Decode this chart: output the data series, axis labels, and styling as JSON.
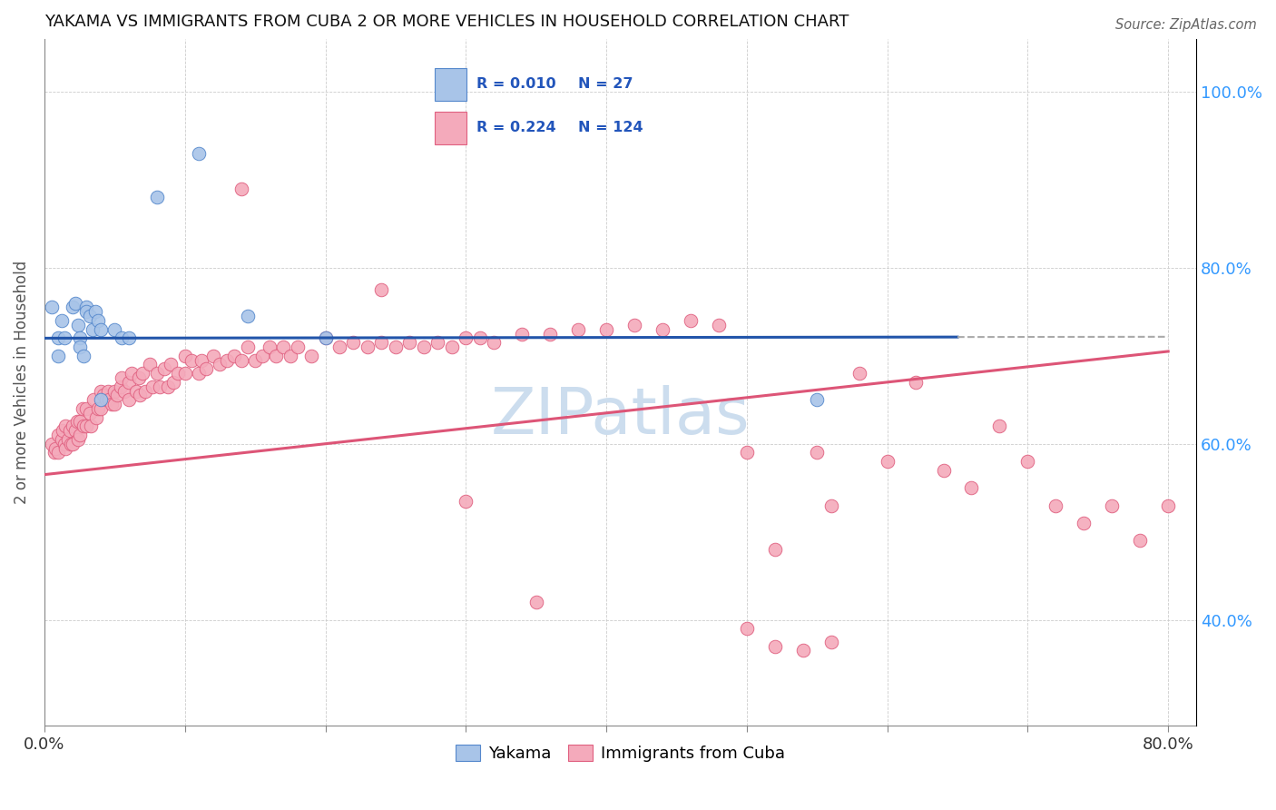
{
  "title": "YAKAMA VS IMMIGRANTS FROM CUBA 2 OR MORE VEHICLES IN HOUSEHOLD CORRELATION CHART",
  "source": "Source: ZipAtlas.com",
  "ylabel": "2 or more Vehicles in Household",
  "legend_R_blue": "0.010",
  "legend_N_blue": "27",
  "legend_R_pink": "0.224",
  "legend_N_pink": "124",
  "blue_color": "#A8C4E8",
  "blue_edge_color": "#5588CC",
  "pink_color": "#F4AABB",
  "pink_edge_color": "#E06080",
  "blue_line_color": "#2255AA",
  "pink_line_color": "#DD5577",
  "dash_color": "#AAAAAA",
  "watermark_color": "#CCDDEE",
  "blue_line_y_intercept": 0.72,
  "blue_line_slope": 0.002,
  "blue_line_solid_end": 0.65,
  "pink_line_y_intercept": 0.565,
  "pink_line_slope": 0.175,
  "x_min": 0.0,
  "x_max": 0.82,
  "y_min": 0.28,
  "y_max": 1.06,
  "y_ticks": [
    0.4,
    0.6,
    0.8,
    1.0
  ],
  "y_tick_labels": [
    "40.0%",
    "60.0%",
    "80.0%",
    "100.0%"
  ],
  "x_ticks": [
    0.0,
    0.1,
    0.2,
    0.3,
    0.4,
    0.5,
    0.6,
    0.7,
    0.8
  ],
  "x_tick_labels_show": [
    "0.0%",
    "80.0%"
  ],
  "yakama_x": [
    0.005,
    0.01,
    0.01,
    0.012,
    0.014,
    0.02,
    0.022,
    0.024,
    0.025,
    0.025,
    0.028,
    0.03,
    0.03,
    0.032,
    0.034,
    0.036,
    0.038,
    0.04,
    0.04,
    0.05,
    0.055,
    0.06,
    0.08,
    0.11,
    0.145,
    0.2,
    0.55
  ],
  "yakama_y": [
    0.755,
    0.72,
    0.7,
    0.74,
    0.72,
    0.755,
    0.76,
    0.735,
    0.72,
    0.71,
    0.7,
    0.755,
    0.75,
    0.745,
    0.73,
    0.75,
    0.74,
    0.73,
    0.65,
    0.73,
    0.72,
    0.72,
    0.88,
    0.93,
    0.745,
    0.72,
    0.65
  ],
  "cuba_x": [
    0.005,
    0.007,
    0.008,
    0.01,
    0.01,
    0.012,
    0.013,
    0.014,
    0.015,
    0.015,
    0.017,
    0.018,
    0.019,
    0.02,
    0.02,
    0.022,
    0.023,
    0.024,
    0.025,
    0.025,
    0.027,
    0.028,
    0.03,
    0.03,
    0.032,
    0.033,
    0.035,
    0.037,
    0.038,
    0.04,
    0.04,
    0.042,
    0.044,
    0.045,
    0.046,
    0.048,
    0.05,
    0.05,
    0.052,
    0.054,
    0.055,
    0.057,
    0.06,
    0.06,
    0.062,
    0.065,
    0.067,
    0.068,
    0.07,
    0.072,
    0.075,
    0.077,
    0.08,
    0.082,
    0.085,
    0.088,
    0.09,
    0.092,
    0.095,
    0.1,
    0.1,
    0.105,
    0.11,
    0.112,
    0.115,
    0.12,
    0.125,
    0.13,
    0.135,
    0.14,
    0.145,
    0.15,
    0.155,
    0.16,
    0.165,
    0.17,
    0.175,
    0.18,
    0.19,
    0.2,
    0.21,
    0.22,
    0.23,
    0.24,
    0.25,
    0.26,
    0.27,
    0.28,
    0.29,
    0.3,
    0.31,
    0.32,
    0.34,
    0.36,
    0.38,
    0.4,
    0.42,
    0.44,
    0.46,
    0.48,
    0.5,
    0.52,
    0.55,
    0.56,
    0.58,
    0.6,
    0.62,
    0.64,
    0.66,
    0.68,
    0.7,
    0.72,
    0.74,
    0.76,
    0.78,
    0.8,
    0.5,
    0.52,
    0.54,
    0.56,
    0.24,
    0.14,
    0.3,
    0.35
  ],
  "cuba_y": [
    0.6,
    0.59,
    0.595,
    0.61,
    0.59,
    0.605,
    0.615,
    0.6,
    0.595,
    0.62,
    0.605,
    0.615,
    0.6,
    0.62,
    0.6,
    0.615,
    0.625,
    0.605,
    0.625,
    0.61,
    0.64,
    0.62,
    0.64,
    0.62,
    0.635,
    0.62,
    0.65,
    0.63,
    0.64,
    0.66,
    0.64,
    0.655,
    0.65,
    0.66,
    0.65,
    0.645,
    0.66,
    0.645,
    0.655,
    0.665,
    0.675,
    0.66,
    0.67,
    0.65,
    0.68,
    0.66,
    0.675,
    0.655,
    0.68,
    0.66,
    0.69,
    0.665,
    0.68,
    0.665,
    0.685,
    0.665,
    0.69,
    0.67,
    0.68,
    0.7,
    0.68,
    0.695,
    0.68,
    0.695,
    0.685,
    0.7,
    0.69,
    0.695,
    0.7,
    0.695,
    0.71,
    0.695,
    0.7,
    0.71,
    0.7,
    0.71,
    0.7,
    0.71,
    0.7,
    0.72,
    0.71,
    0.715,
    0.71,
    0.715,
    0.71,
    0.715,
    0.71,
    0.715,
    0.71,
    0.72,
    0.72,
    0.715,
    0.725,
    0.725,
    0.73,
    0.73,
    0.735,
    0.73,
    0.74,
    0.735,
    0.59,
    0.48,
    0.59,
    0.53,
    0.68,
    0.58,
    0.67,
    0.57,
    0.55,
    0.62,
    0.58,
    0.53,
    0.51,
    0.53,
    0.49,
    0.53,
    0.39,
    0.37,
    0.365,
    0.375,
    0.775,
    0.89,
    0.535,
    0.42
  ]
}
